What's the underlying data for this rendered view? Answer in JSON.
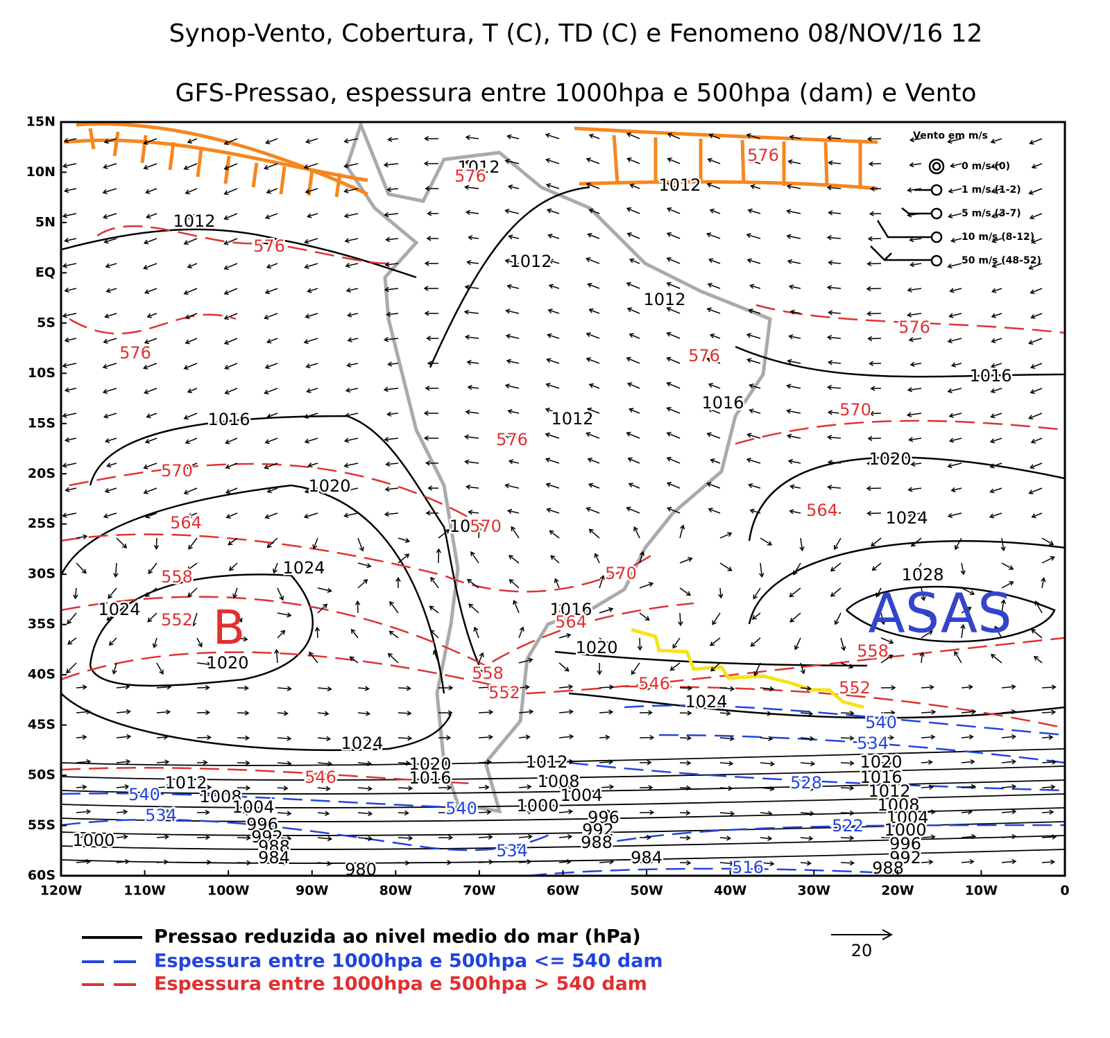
{
  "header": {
    "title": "Synop-Vento, Cobertura, T (C), TD (C) e Fenomeno 08/NOV/16 12",
    "subtitle": "GFS-Pressao, espessura entre 1000hpa e 500hpa (dam) e Vento"
  },
  "lat_ticks": [
    "15N",
    "10N",
    "5N",
    "EQ",
    "5S",
    "10S",
    "15S",
    "20S",
    "25S",
    "30S",
    "35S",
    "40S",
    "45S",
    "50S",
    "55S",
    "60S"
  ],
  "lon_ticks": [
    "120W",
    "110W",
    "100W",
    "90W",
    "80W",
    "70W",
    "60W",
    "50W",
    "40W",
    "30W",
    "20W",
    "10W",
    "0"
  ],
  "pressure_labels": [
    "1012",
    "1012",
    "1012",
    "1012",
    "1012",
    "1016",
    "1016",
    "1016",
    "1012",
    "1020",
    "1020",
    "10",
    "1024",
    "1024",
    "1028",
    "1024",
    "1016",
    "1020",
    "1020",
    "1024",
    "1024",
    "1020",
    "1012",
    "1020",
    "1016",
    "1016",
    "1012",
    "1008",
    "1012",
    "1008",
    "1004",
    "1004",
    "1000",
    "1008",
    "1004",
    "996",
    "996",
    "992",
    "1000",
    "1000",
    "992",
    "988",
    "996",
    "988",
    "992",
    "984",
    "984",
    "980",
    "988"
  ],
  "thickness_red_labels": [
    "576",
    "576",
    "576",
    "576",
    "576",
    "576",
    "570",
    "576",
    "570",
    "564",
    "564",
    "570",
    "570",
    "558",
    "552",
    "564",
    "558",
    "558",
    "546",
    "552",
    "552",
    "546"
  ],
  "thickness_blue_labels": [
    "540",
    "534",
    "528",
    "540",
    "540",
    "534",
    "522",
    "534",
    "516"
  ],
  "annotations": [
    "B",
    "ASAS"
  ],
  "wind_legend": {
    "title": "Vento em m/s",
    "items": [
      "0 m/s (0)",
      "1 m/s (1-2)",
      "5 m/s (3-7)",
      "10 m/s (8-12)",
      "50 m/s (48-52)"
    ]
  },
  "legend": [
    "Pressao reduzida ao nivel medio do mar (hPa)",
    "Espessura entre 1000hpa e 500hpa   <=   540 dam",
    "Espessura entre 1000hpa e 500hpa   >   540 dam"
  ],
  "wind_scale": "20"
}
